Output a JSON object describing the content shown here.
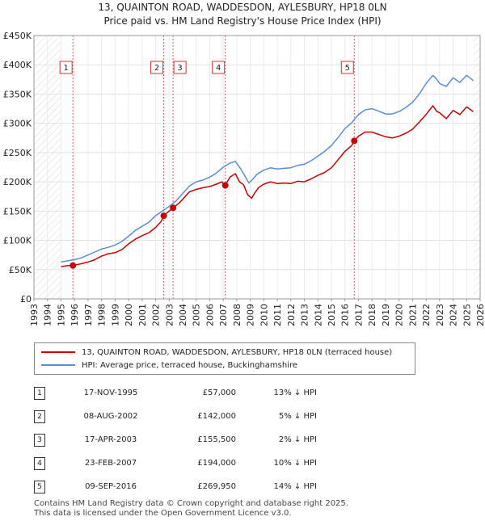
{
  "header": {
    "title_line1": "13, QUAINTON ROAD, WADDESDON, AYLESBURY, HP18 0LN",
    "title_line2": "Price paid vs. HM Land Registry's House Price Index (HPI)"
  },
  "colors": {
    "property": "#cc0000",
    "hpi": "#5b8ed6",
    "shade": "#dde4f2",
    "marker_line": "#dd6666"
  },
  "chart_data": {
    "type": "line",
    "title": "Price paid vs. HM Land Registry's House Price Index (HPI)",
    "ylim": [
      0,
      450000
    ],
    "xlim": [
      1993,
      2026
    ],
    "y_ticks": [
      {
        "value": 0,
        "label": "£0"
      },
      {
        "value": 50000,
        "label": "£50K"
      },
      {
        "value": 100000,
        "label": "£100K"
      },
      {
        "value": 150000,
        "label": "£150K"
      },
      {
        "value": 200000,
        "label": "£200K"
      },
      {
        "value": 250000,
        "label": "£250K"
      },
      {
        "value": 300000,
        "label": "£300K"
      },
      {
        "value": 350000,
        "label": "£350K"
      },
      {
        "value": 400000,
        "label": "£400K"
      },
      {
        "value": 450000,
        "label": "£450K"
      }
    ],
    "x_ticks": [
      "1993",
      "1994",
      "1995",
      "1996",
      "1997",
      "1998",
      "1999",
      "2000",
      "2001",
      "2002",
      "2003",
      "2004",
      "2005",
      "2006",
      "2007",
      "2008",
      "2009",
      "2010",
      "2011",
      "2012",
      "2013",
      "2014",
      "2015",
      "2016",
      "2017",
      "2018",
      "2019",
      "2020",
      "2021",
      "2022",
      "2023",
      "2024",
      "2025",
      "2026"
    ],
    "data_range": [
      1995.0,
      2025.5
    ],
    "series": [
      {
        "name": "13, QUAINTON ROAD, WADDESDON, AYLESBURY, HP18 0LN (terraced house)",
        "color": "#cc0000",
        "x": [
          1995.0,
          1995.5,
          1995.88,
          1996.5,
          1997.0,
          1997.5,
          1998.0,
          1998.5,
          1999.0,
          1999.5,
          2000.0,
          2000.5,
          2001.0,
          2001.5,
          2002.0,
          2002.4,
          2002.6,
          2003.0,
          2003.29,
          2003.7,
          2004.0,
          2004.5,
          2005.0,
          2005.5,
          2006.0,
          2006.5,
          2006.9,
          2007.15,
          2007.5,
          2007.9,
          2008.2,
          2008.5,
          2008.8,
          2009.1,
          2009.3,
          2009.6,
          2010.0,
          2010.5,
          2011.0,
          2011.5,
          2012.0,
          2012.5,
          2013.0,
          2013.5,
          2014.0,
          2014.5,
          2015.0,
          2015.5,
          2016.0,
          2016.5,
          2016.69,
          2017.0,
          2017.5,
          2018.0,
          2018.5,
          2019.0,
          2019.5,
          2020.0,
          2020.5,
          2021.0,
          2021.5,
          2022.0,
          2022.5,
          2022.8,
          2023.0,
          2023.5,
          2024.0,
          2024.5,
          2025.0,
          2025.5
        ],
        "values": [
          55000,
          57000,
          57000,
          60000,
          63000,
          67000,
          73000,
          77000,
          79000,
          84000,
          94000,
          102000,
          108000,
          113000,
          122000,
          132000,
          142000,
          150000,
          155500,
          163000,
          170000,
          183000,
          187000,
          190000,
          192000,
          196000,
          200000,
          194000,
          208000,
          214000,
          200000,
          195000,
          178000,
          172000,
          180000,
          190000,
          196000,
          200000,
          197000,
          198000,
          197000,
          201000,
          200000,
          205000,
          211000,
          216000,
          224000,
          238000,
          252000,
          262000,
          269950,
          278000,
          285000,
          285000,
          281000,
          277000,
          275000,
          278000,
          283000,
          290000,
          302000,
          315000,
          330000,
          320000,
          318000,
          308000,
          322000,
          315000,
          328000,
          320000
        ]
      },
      {
        "name": "HPI: Average price, terraced house, Buckinghamshire",
        "color": "#5b8ed6",
        "x": [
          1995.0,
          1995.5,
          1996.0,
          1996.5,
          1997.0,
          1997.5,
          1998.0,
          1998.5,
          1999.0,
          1999.5,
          2000.0,
          2000.5,
          2001.0,
          2001.5,
          2002.0,
          2002.5,
          2003.0,
          2003.5,
          2004.0,
          2004.5,
          2005.0,
          2005.5,
          2006.0,
          2006.5,
          2007.0,
          2007.5,
          2007.9,
          2008.3,
          2008.6,
          2008.9,
          2009.2,
          2009.5,
          2010.0,
          2010.5,
          2011.0,
          2011.5,
          2012.0,
          2012.5,
          2013.0,
          2013.5,
          2014.0,
          2014.5,
          2015.0,
          2015.5,
          2016.0,
          2016.5,
          2017.0,
          2017.5,
          2018.0,
          2018.5,
          2019.0,
          2019.5,
          2020.0,
          2020.5,
          2021.0,
          2021.5,
          2022.0,
          2022.5,
          2022.8,
          2023.0,
          2023.5,
          2024.0,
          2024.5,
          2025.0,
          2025.5
        ],
        "values": [
          63000,
          65000,
          67000,
          70000,
          75000,
          80000,
          85000,
          88000,
          92000,
          98000,
          107000,
          117000,
          124000,
          131000,
          142000,
          150000,
          158000,
          167000,
          180000,
          193000,
          200000,
          203000,
          208000,
          215000,
          225000,
          232000,
          235000,
          222000,
          210000,
          198000,
          205000,
          213000,
          220000,
          224000,
          222000,
          223000,
          224000,
          228000,
          230000,
          236000,
          244000,
          252000,
          262000,
          276000,
          291000,
          301000,
          315000,
          323000,
          325000,
          321000,
          316000,
          316000,
          320000,
          327000,
          336000,
          350000,
          368000,
          382000,
          375000,
          368000,
          363000,
          378000,
          370000,
          382000,
          373000
        ]
      }
    ],
    "markers": [
      {
        "id": "1",
        "x": 1995.88,
        "value": 57000
      },
      {
        "id": "2",
        "x": 2002.6,
        "value": 142000
      },
      {
        "id": "3",
        "x": 2003.29,
        "value": 155500
      },
      {
        "id": "4",
        "x": 2007.15,
        "value": 194000
      },
      {
        "id": "5",
        "x": 2016.69,
        "value": 269950
      }
    ],
    "shaded_ranges": [
      [
        1993.0,
        1995.0
      ],
      [
        2025.5,
        2026.0
      ]
    ]
  },
  "legend": {
    "property_label": "13, QUAINTON ROAD, WADDESDON, AYLESBURY, HP18 0LN (terraced house)",
    "hpi_label": "HPI: Average price, terraced house, Buckinghamshire"
  },
  "sales": [
    {
      "num": "1",
      "date": "17-NOV-1995",
      "price": "£57,000",
      "hpi": "13% ↓ HPI"
    },
    {
      "num": "2",
      "date": "08-AUG-2002",
      "price": "£142,000",
      "hpi": "5% ↓ HPI"
    },
    {
      "num": "3",
      "date": "17-APR-2003",
      "price": "£155,500",
      "hpi": "2% ↓ HPI"
    },
    {
      "num": "4",
      "date": "23-FEB-2007",
      "price": "£194,000",
      "hpi": "10% ↓ HPI"
    },
    {
      "num": "5",
      "date": "09-SEP-2016",
      "price": "£269,950",
      "hpi": "14% ↓ HPI"
    }
  ],
  "footer": {
    "line1": "Contains HM Land Registry data © Crown copyright and database right 2025.",
    "line2": "This data is licensed under the Open Government Licence v3.0."
  }
}
